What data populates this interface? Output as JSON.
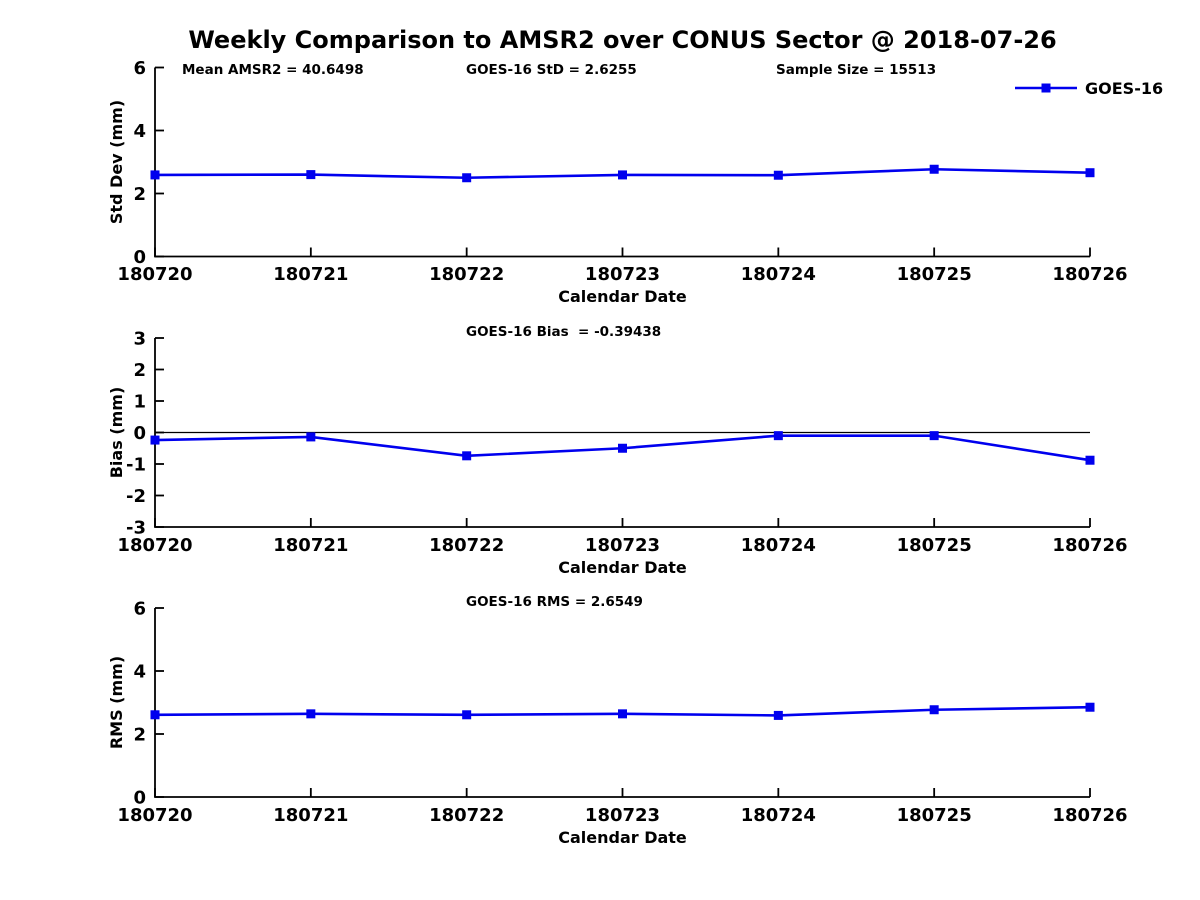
{
  "title": "Weekly Comparison to AMSR2 over CONUS Sector @ 2018-07-26",
  "legend": {
    "label": "GOES-16",
    "position": "top-right"
  },
  "colors": {
    "line": "#0000EE",
    "marker": "#0000EE",
    "axis": "#000000",
    "text": "#000000",
    "zero_line": "#000000",
    "background": "#FFFFFF"
  },
  "chart_data": [
    {
      "type": "line",
      "title": "",
      "xlabel": "Calendar Date",
      "ylabel": "Std Dev (mm)",
      "categories": [
        "180720",
        "180721",
        "180722",
        "180723",
        "180724",
        "180725",
        "180726"
      ],
      "series": [
        {
          "name": "GOES-16",
          "values": [
            2.59,
            2.6,
            2.5,
            2.59,
            2.58,
            2.77,
            2.66
          ]
        }
      ],
      "ylim": [
        0,
        6
      ],
      "yticks": [
        0,
        2,
        4,
        6
      ],
      "grid": false,
      "legend": true,
      "annotations": [
        "Mean AMSR2 = 40.6498",
        "GOES-16 StD = 2.6255",
        "Sample Size = 15513"
      ]
    },
    {
      "type": "line",
      "title": "",
      "xlabel": "Calendar Date",
      "ylabel": "Bias (mm)",
      "categories": [
        "180720",
        "180721",
        "180722",
        "180723",
        "180724",
        "180725",
        "180726"
      ],
      "series": [
        {
          "name": "GOES-16",
          "values": [
            -0.24,
            -0.14,
            -0.74,
            -0.5,
            -0.1,
            -0.1,
            -0.88
          ]
        }
      ],
      "ylim": [
        -3,
        3
      ],
      "yticks": [
        -3,
        -2,
        -1,
        0,
        1,
        2,
        3
      ],
      "zero_line": true,
      "grid": false,
      "legend": false,
      "annotations": [
        "GOES-16 Bias  = -0.39438"
      ]
    },
    {
      "type": "line",
      "title": "",
      "xlabel": "Calendar Date",
      "ylabel": "RMS (mm)",
      "categories": [
        "180720",
        "180721",
        "180722",
        "180723",
        "180724",
        "180725",
        "180726"
      ],
      "series": [
        {
          "name": "GOES-16",
          "values": [
            2.61,
            2.64,
            2.61,
            2.64,
            2.59,
            2.77,
            2.85
          ]
        }
      ],
      "ylim": [
        0,
        6
      ],
      "yticks": [
        0,
        2,
        4,
        6
      ],
      "grid": false,
      "legend": false,
      "annotations": [
        "GOES-16 RMS = 2.6549"
      ]
    }
  ]
}
